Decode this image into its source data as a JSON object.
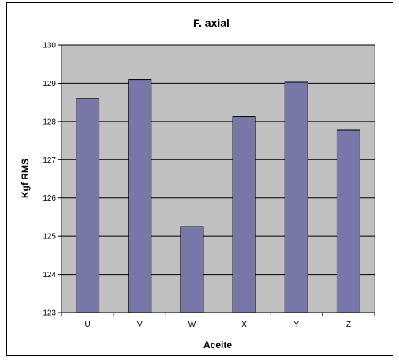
{
  "chart_data": {
    "type": "bar",
    "title": "F. axial",
    "xlabel": "Aceite",
    "ylabel": "Kgf RMS",
    "categories": [
      "U",
      "V",
      "W",
      "X",
      "Y",
      "Z"
    ],
    "values": [
      128.6,
      129.1,
      125.25,
      128.13,
      129.03,
      127.77
    ],
    "ylim": [
      123,
      130
    ],
    "yticks": [
      "123",
      "124",
      "125",
      "126",
      "127",
      "128",
      "129",
      "130"
    ],
    "grid": true,
    "legend": "none",
    "colors": {
      "plot_background": "#c0c0c0",
      "bar_fill": "#7777a8",
      "bar_stroke": "#000000",
      "gridline": "#000000"
    }
  }
}
